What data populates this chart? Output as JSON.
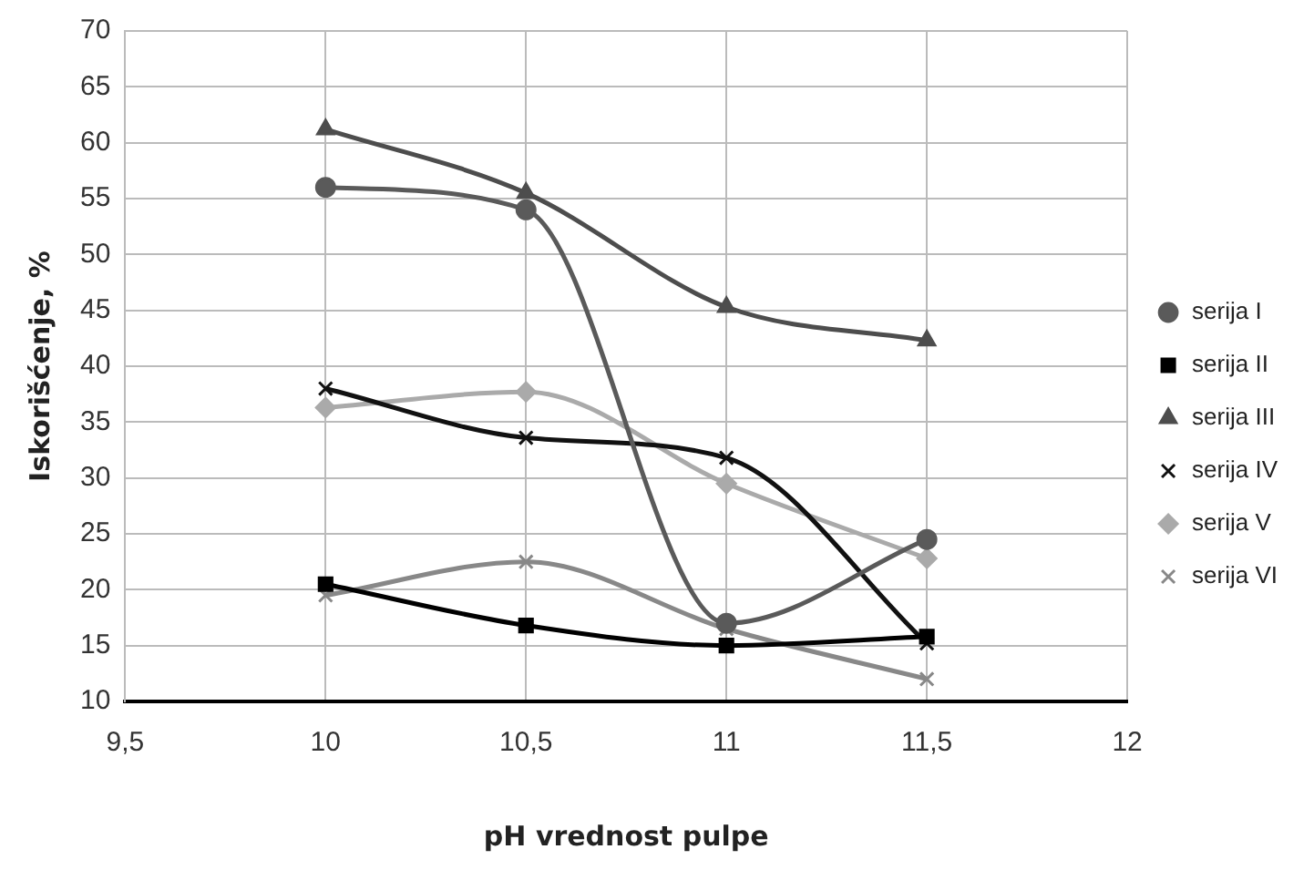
{
  "chart_data": {
    "type": "line",
    "xlabel": "pH vrednost pulpe",
    "ylabel": "Iskorišćenje, %",
    "x": [
      10,
      10.5,
      11,
      11.5
    ],
    "xlim": [
      9.5,
      12
    ],
    "xticks": [
      {
        "value": 9.5,
        "label": "9,5"
      },
      10,
      {
        "value": 10.5,
        "label": "10,5"
      },
      11,
      {
        "value": 11.5,
        "label": "11,5"
      },
      12
    ],
    "ylim": [
      10,
      70
    ],
    "yticks": [
      10,
      15,
      20,
      25,
      30,
      35,
      40,
      45,
      50,
      55,
      60,
      65,
      70
    ],
    "grid": true,
    "legend": "right",
    "line_style": "solid",
    "series": [
      {
        "name": "serija I",
        "color": "#5a5a5a",
        "marker": "circle",
        "values": [
          56,
          54,
          17,
          24.5
        ]
      },
      {
        "name": "serija II",
        "color": "#000000",
        "marker": "square",
        "values": [
          20.5,
          16.8,
          15,
          15.8
        ]
      },
      {
        "name": "serija III",
        "color": "#4d4d4d",
        "marker": "triangle",
        "values": [
          61.2,
          55.5,
          45.3,
          42.3
        ]
      },
      {
        "name": "serija IV",
        "color": "#111111",
        "marker": "cross",
        "values": [
          38,
          33.6,
          31.8,
          15.2
        ]
      },
      {
        "name": "serija V",
        "color": "#aaaaaa",
        "marker": "diamond",
        "values": [
          36.3,
          37.7,
          29.5,
          22.8
        ]
      },
      {
        "name": "serija VI",
        "color": "#888888",
        "marker": "cross",
        "values": [
          19.5,
          22.5,
          16.5,
          12
        ]
      }
    ]
  }
}
